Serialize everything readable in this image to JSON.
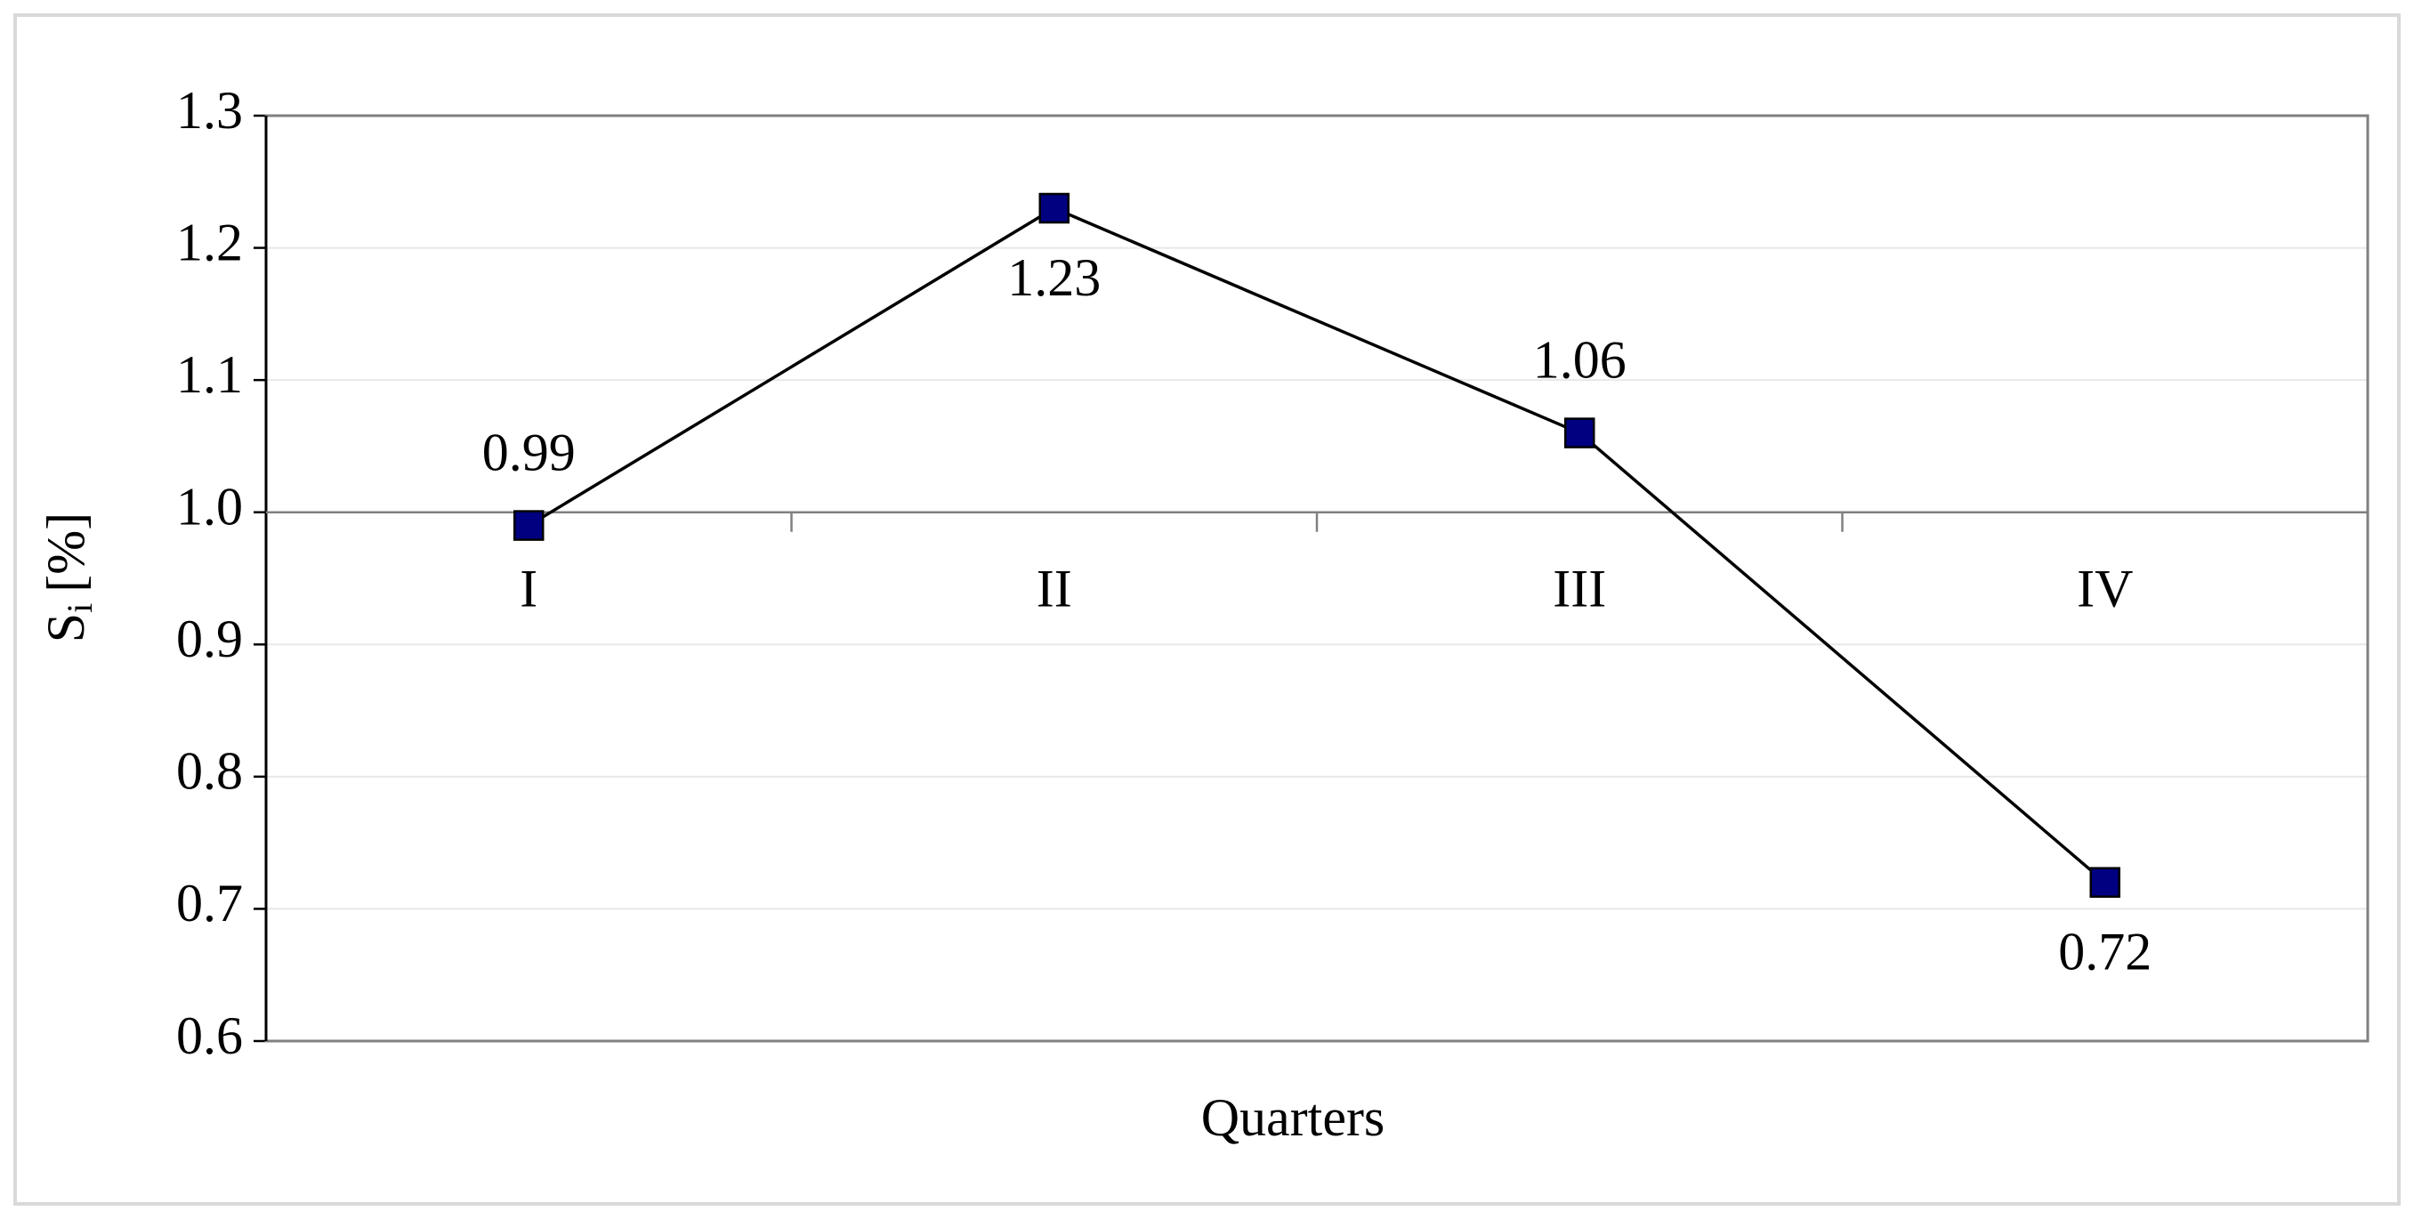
{
  "chart_data": {
    "type": "line",
    "categories": [
      "I",
      "II",
      "III",
      "IV"
    ],
    "series": [
      {
        "color": "#000080",
        "values": [
          0.99,
          1.23,
          1.06,
          0.72
        ]
      }
    ],
    "label_positions": [
      "above",
      "below",
      "above",
      "below"
    ],
    "ylim": [
      0.6,
      1.3
    ],
    "yticks": [
      0.6,
      0.7,
      0.8,
      0.9,
      {
        "value": 1,
        "label": "1.0"
      },
      1.1,
      1.2,
      1.3
    ],
    "category_axis_at": 1,
    "x_label": "Quarters",
    "y_label": "S",
    "y_label_sub": "i",
    "y_label_unit": "[%]",
    "grid": true
  }
}
